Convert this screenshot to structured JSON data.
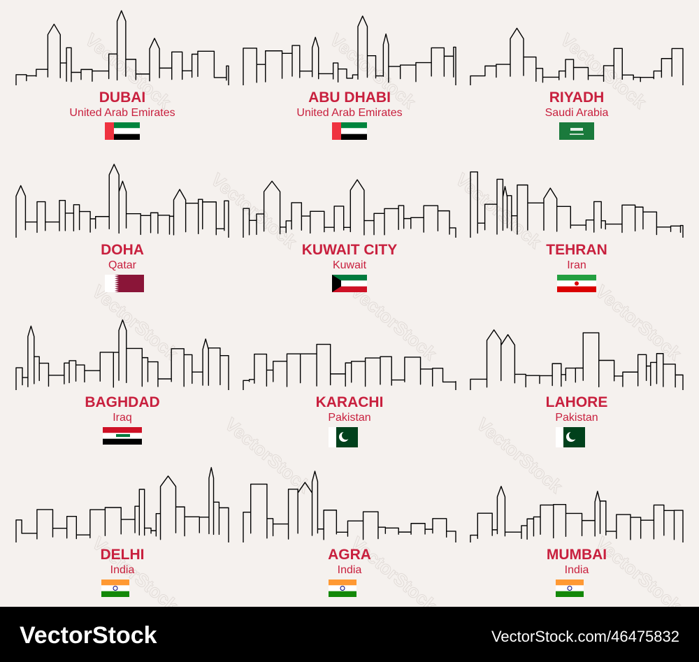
{
  "cities": [
    {
      "name": "DUBAI",
      "country": "United Arab Emirates"
    },
    {
      "name": "ABU DHABI",
      "country": "United Arab Emirates"
    },
    {
      "name": "RIYADH",
      "country": "Saudi Arabia"
    },
    {
      "name": "DOHA",
      "country": "Qatar"
    },
    {
      "name": "KUWAIT CITY",
      "country": "Kuwait"
    },
    {
      "name": "TEHRAN",
      "country": "Iran"
    },
    {
      "name": "BAGHDAD",
      "country": "Iraq"
    },
    {
      "name": "KARACHI",
      "country": "Pakistan"
    },
    {
      "name": "LAHORE",
      "country": "Pakistan"
    },
    {
      "name": "DELHI",
      "country": "India"
    },
    {
      "name": "AGRA",
      "country": "India"
    },
    {
      "name": "MUMBAI",
      "country": "India"
    }
  ],
  "watermark": "VectorStock",
  "footer": {
    "brand": "VectorStock",
    "url": "VectorStock.com/46475832"
  }
}
